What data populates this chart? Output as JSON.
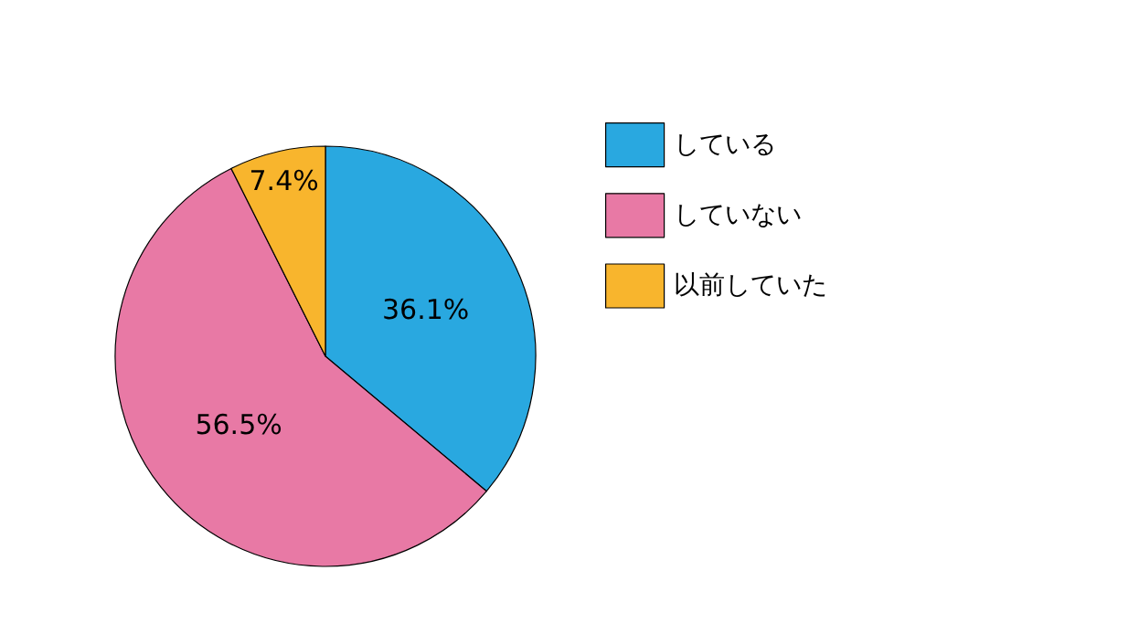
{
  "chart_data": {
    "type": "pie",
    "categories": [
      "している",
      "していない",
      "以前していた"
    ],
    "values": [
      36.1,
      56.5,
      7.4
    ],
    "value_labels": [
      "36.1%",
      "56.5%",
      "7.4%"
    ],
    "colors": [
      "#29a8e0",
      "#e879a5",
      "#f8b52d"
    ],
    "legend": "right"
  }
}
